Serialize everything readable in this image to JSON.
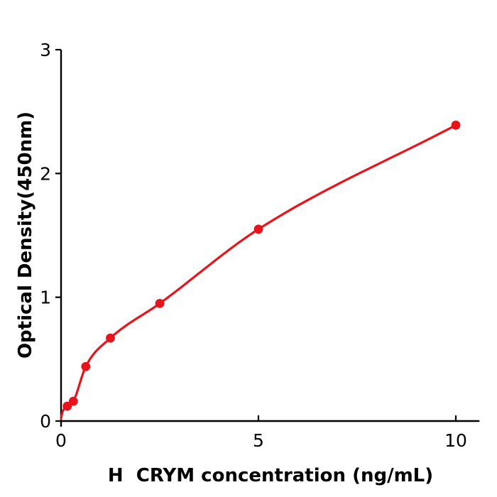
{
  "figure": {
    "background": "#ffffff"
  },
  "chart_data": {
    "type": "scatter",
    "title": "",
    "xlabel": "H  CRYM concentration (ng/mL)",
    "ylabel": "Optical Density(450nm)",
    "x": [
      0.156,
      0.312,
      0.625,
      1.25,
      2.5,
      5,
      10
    ],
    "y": [
      0.12,
      0.16,
      0.44,
      0.67,
      0.95,
      1.55,
      2.39
    ],
    "curve_start": {
      "x": 0,
      "y": 0.02
    },
    "xlim": [
      0,
      10.6
    ],
    "ylim": [
      0,
      3
    ],
    "xticks": [
      0,
      5,
      10
    ],
    "xtick_labels": [
      "0",
      "5",
      "10"
    ],
    "yticks": [
      0,
      1,
      2,
      3
    ],
    "ytick_labels": [
      "0",
      "1",
      "2",
      "3"
    ],
    "grid": false,
    "legend": null,
    "point_color": "#e8141b",
    "line_color": "#e8141b",
    "axis_color": "#000000",
    "text_color": "#000000"
  }
}
